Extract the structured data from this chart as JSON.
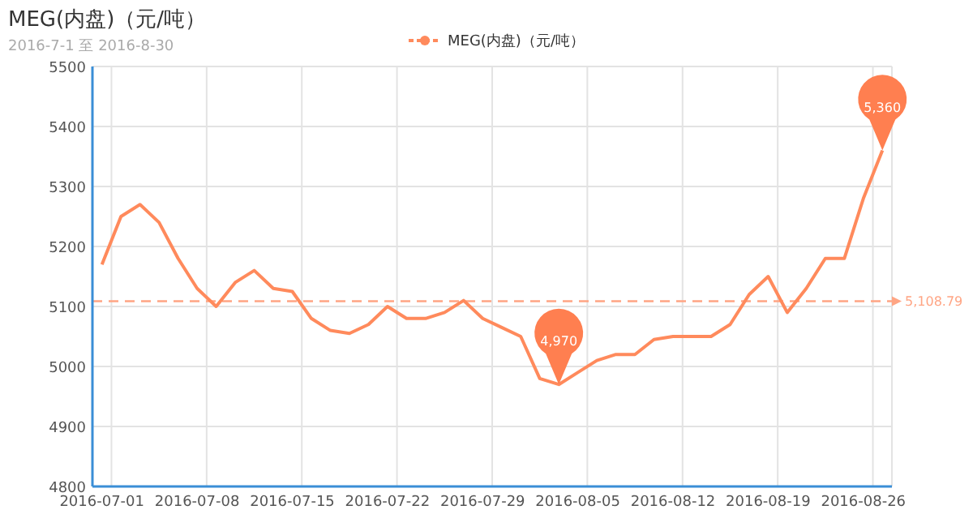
{
  "chart_data": {
    "type": "line",
    "title": "MEG(内盘)（元/吨）",
    "subtitle": "2016-7-1 至 2016-8-30",
    "categories": [
      "2016-07-01",
      null,
      null,
      null,
      null,
      "2016-07-08",
      null,
      null,
      null,
      null,
      "2016-07-15",
      null,
      null,
      null,
      null,
      "2016-07-22",
      null,
      null,
      null,
      null,
      "2016-07-29",
      null,
      null,
      null,
      null,
      "2016-08-05",
      null,
      null,
      null,
      null,
      "2016-08-12",
      null,
      null,
      null,
      null,
      "2016-08-19",
      null,
      null,
      null,
      null,
      "2016-08-26",
      null
    ],
    "series": [
      {
        "name": "MEG(内盘)（元/吨）",
        "color": "#ff8a5c",
        "values": [
          5170,
          5250,
          5270,
          5240,
          5180,
          5130,
          5100,
          5140,
          5160,
          5130,
          5125,
          5080,
          5060,
          5055,
          5070,
          5100,
          5080,
          5080,
          5090,
          5110,
          5080,
          5065,
          5050,
          4980,
          4970,
          4990,
          5010,
          5020,
          5020,
          5045,
          5050,
          5050,
          5050,
          5070,
          5120,
          5150,
          5090,
          5130,
          5180,
          5180,
          5280,
          5360
        ]
      }
    ],
    "ylim": [
      4800,
      5500
    ],
    "yticks": [
      4800,
      4900,
      5000,
      5100,
      5200,
      5300,
      5400,
      5500
    ],
    "ref_lines": [
      {
        "axis": "y",
        "value": 5108.79,
        "label": "5,108.79",
        "color": "#ffa584",
        "line_style": "dashed"
      }
    ],
    "annotations": [
      {
        "text": "5,360",
        "y": 5360
      },
      {
        "text": "4,970",
        "y": 4970
      }
    ],
    "grid": true,
    "legend": "top",
    "marker": "none",
    "line_style": "solid"
  }
}
